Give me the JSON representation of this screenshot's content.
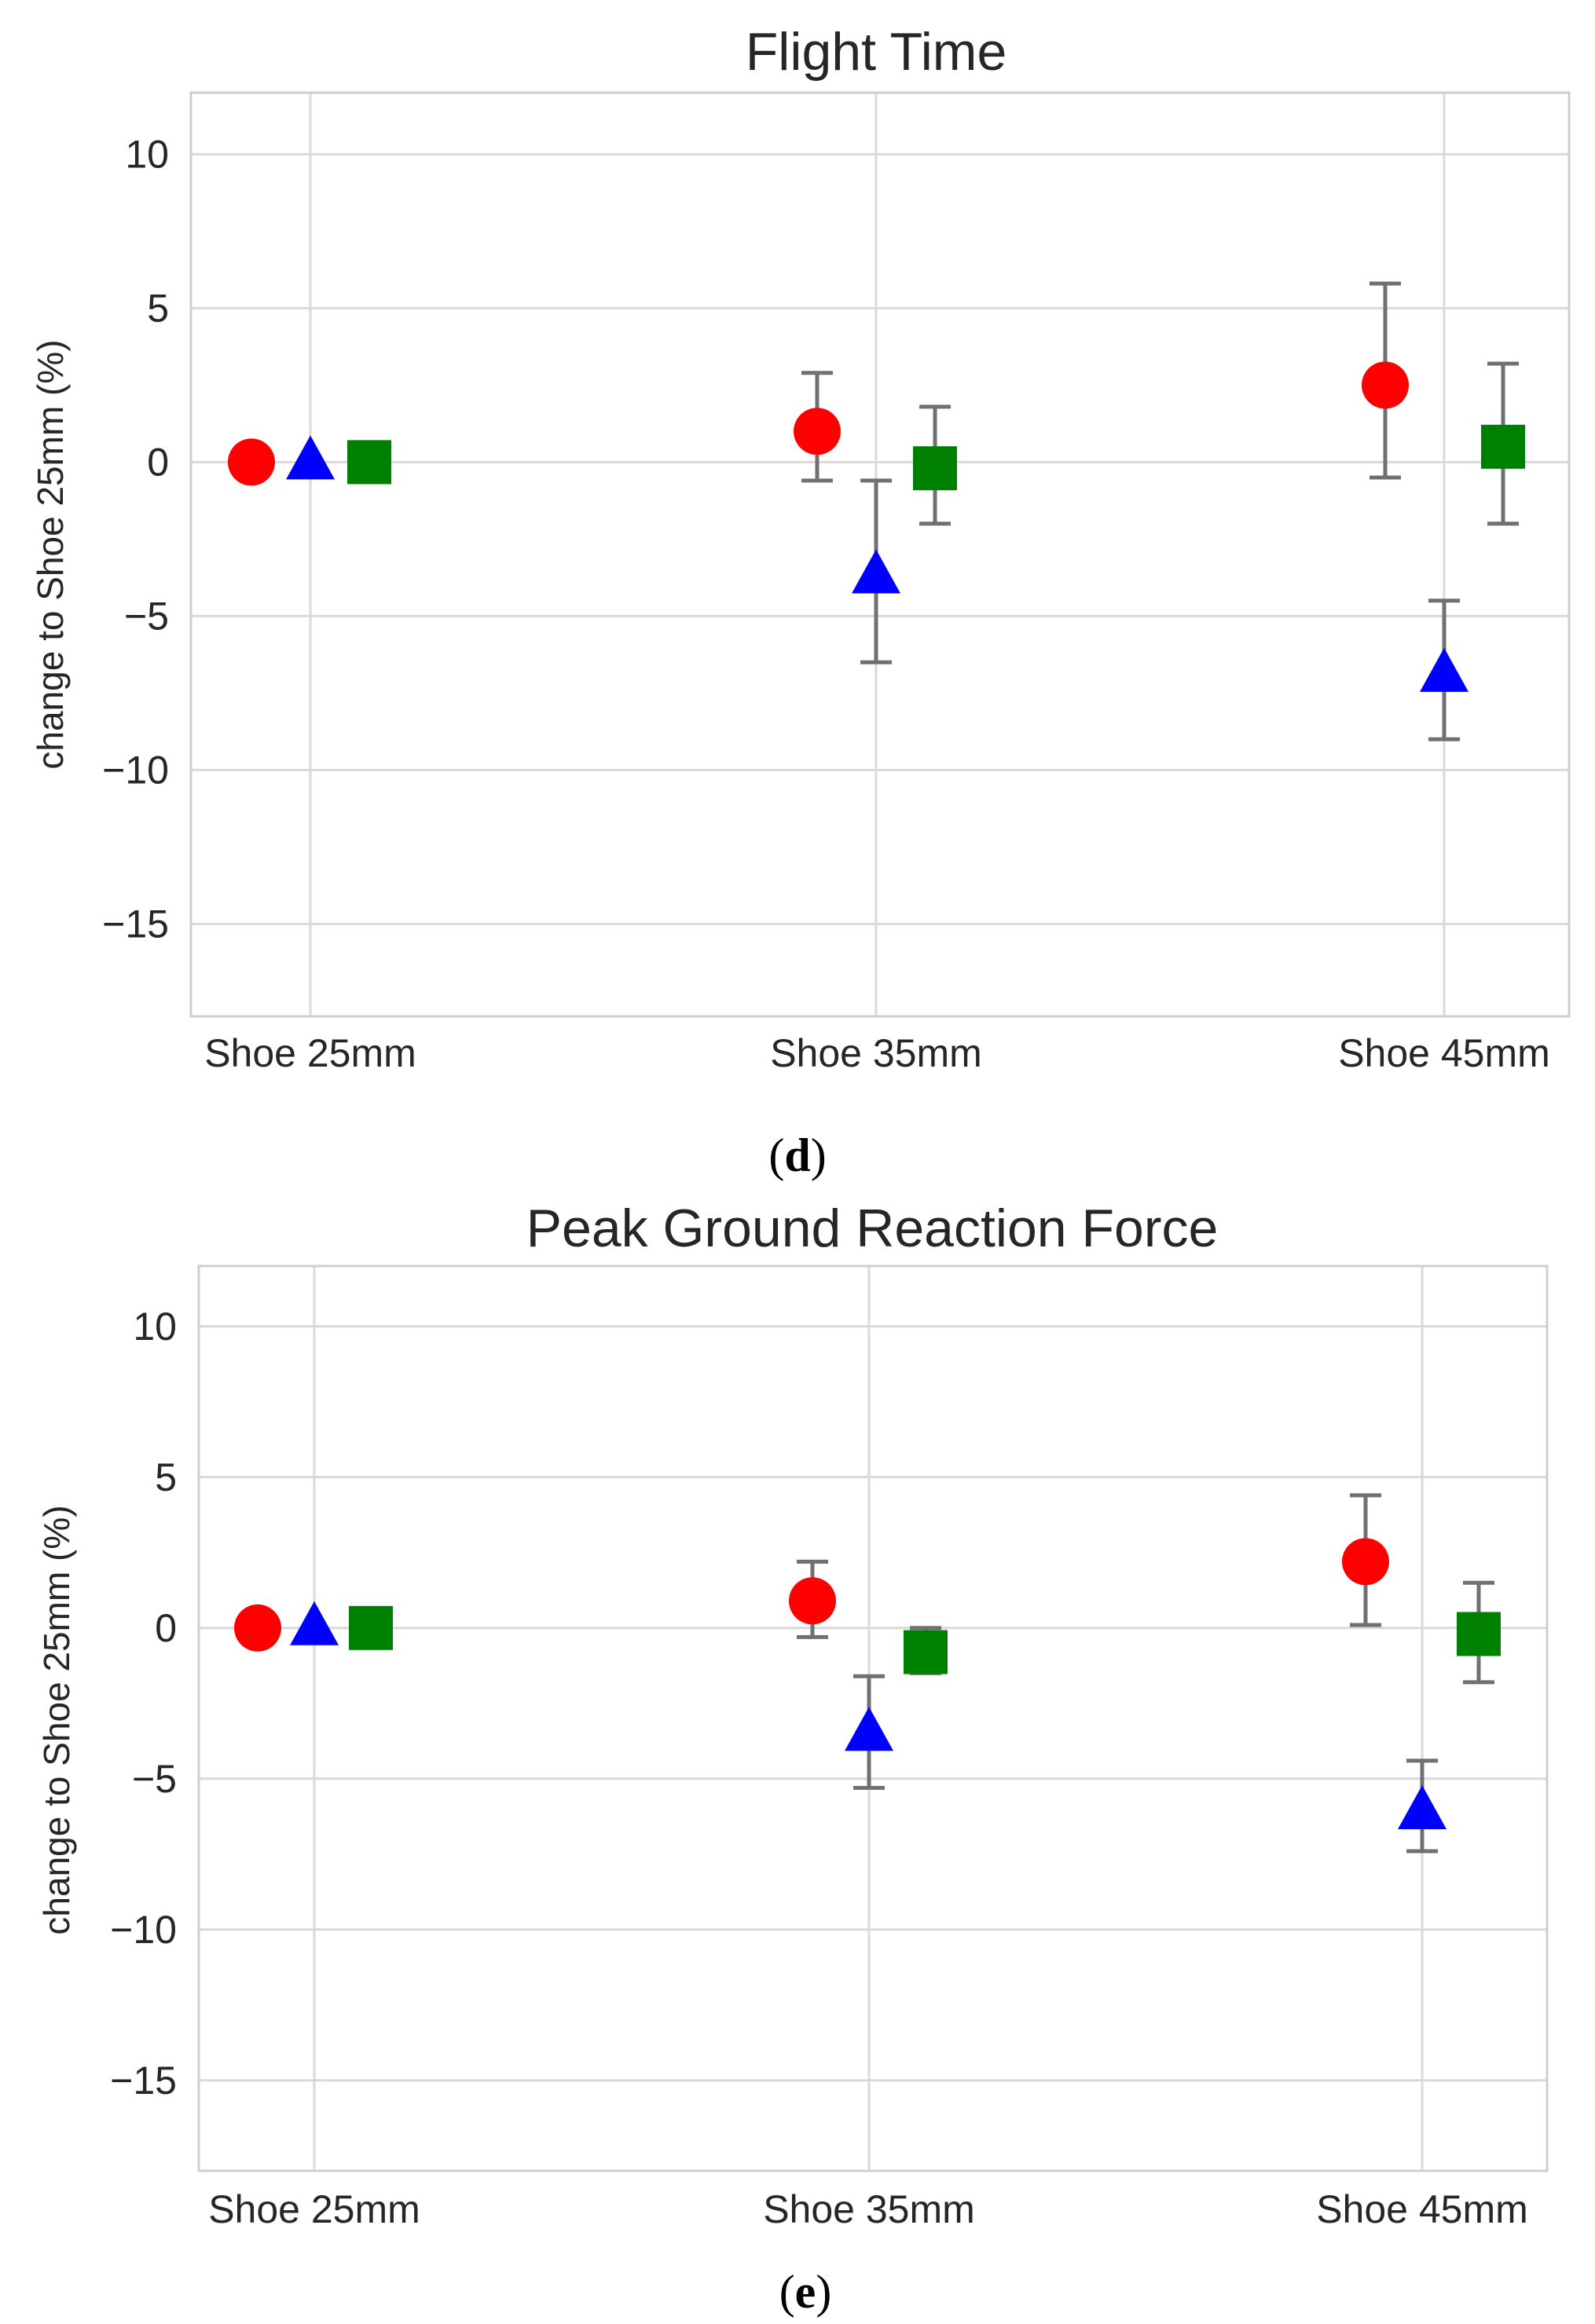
{
  "colors": {
    "series_1": "#ff0000",
    "series_2": "#0000ff",
    "series_3": "#008000",
    "error_bar": "#707070",
    "grid": "#d9d9d9",
    "frame": "#cfcfcf",
    "text": "#262626"
  },
  "chart_data": [
    {
      "type": "scatter",
      "title": "Flight Time",
      "panel_label": "d",
      "xlabel": "",
      "ylabel": "change to Shoe 25mm (%)",
      "categories": [
        "Shoe 25mm",
        "Shoe 35mm",
        "Shoe 45mm"
      ],
      "ylim": [
        -18,
        12
      ],
      "yticks": [
        10,
        5,
        0,
        -5,
        -10,
        -15
      ],
      "ytick_labels": [
        "10",
        "5",
        "0",
        "−5",
        "−10",
        "−15"
      ],
      "grid": true,
      "series": [
        {
          "marker": "circle",
          "color": "#ff0000",
          "values": [
            0,
            1.0,
            2.5
          ],
          "error_low": [
            0,
            -0.6,
            -0.5
          ],
          "error_high": [
            0,
            2.9,
            5.8
          ]
        },
        {
          "marker": "triangle",
          "color": "#0000ff",
          "values": [
            0,
            -3.7,
            -6.9
          ],
          "error_low": [
            0,
            -6.5,
            -9.0
          ],
          "error_high": [
            0,
            -0.6,
            -4.5
          ]
        },
        {
          "marker": "square",
          "color": "#008000",
          "values": [
            0,
            -0.2,
            0.5
          ],
          "error_low": [
            0,
            -2.0,
            -2.0
          ],
          "error_high": [
            0,
            1.8,
            3.2
          ]
        }
      ]
    },
    {
      "type": "scatter",
      "title": "Peak Ground Reaction Force",
      "panel_label": "e",
      "xlabel": "",
      "ylabel": "change to Shoe 25mm (%)",
      "categories": [
        "Shoe 25mm",
        "Shoe 35mm",
        "Shoe 45mm"
      ],
      "ylim": [
        -18,
        12
      ],
      "yticks": [
        10,
        5,
        0,
        -5,
        -10,
        -15
      ],
      "ytick_labels": [
        "10",
        "5",
        "0",
        "−5",
        "−10",
        "−15"
      ],
      "grid": true,
      "series": [
        {
          "marker": "circle",
          "color": "#ff0000",
          "values": [
            0,
            0.9,
            2.2
          ],
          "error_low": [
            0,
            -0.3,
            0.1
          ],
          "error_high": [
            0,
            2.2,
            4.4
          ]
        },
        {
          "marker": "triangle",
          "color": "#0000ff",
          "values": [
            0,
            -3.5,
            -6.1
          ],
          "error_low": [
            0,
            -5.3,
            -7.4
          ],
          "error_high": [
            0,
            -1.6,
            -4.4
          ]
        },
        {
          "marker": "square",
          "color": "#008000",
          "values": [
            0,
            -0.8,
            -0.2
          ],
          "error_low": [
            0,
            -1.5,
            -1.8
          ],
          "error_high": [
            0,
            0.0,
            1.5
          ]
        }
      ]
    }
  ]
}
